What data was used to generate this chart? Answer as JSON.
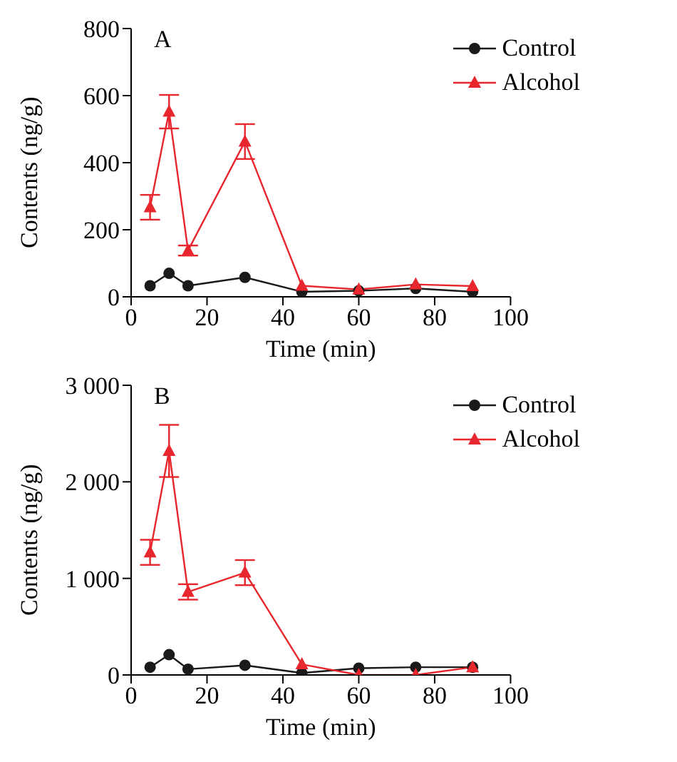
{
  "chart_data": [
    {
      "type": "line",
      "annotations": [
        "A"
      ],
      "xlabel": "Time (min)",
      "ylabel": "Contents (ng/g)",
      "x": [
        5,
        10,
        15,
        30,
        45,
        60,
        75,
        90
      ],
      "xlim": [
        0,
        100
      ],
      "xticks": [
        0,
        20,
        40,
        60,
        80,
        100
      ],
      "ylim": [
        0,
        800
      ],
      "yticks": [
        0,
        200,
        400,
        600,
        800
      ],
      "legend": "top right",
      "grid": false,
      "series": [
        {
          "name": "Control",
          "color": "#1a1a1a",
          "marker": "circle",
          "values": [
            33,
            70,
            33,
            58,
            15,
            18,
            25,
            15
          ]
        },
        {
          "name": "Alcohol",
          "color": "#e8262e",
          "marker": "triangle",
          "values": [
            267,
            552,
            138,
            463,
            33,
            22,
            37,
            32
          ],
          "errors": [
            37,
            50,
            15,
            52,
            null,
            null,
            null,
            null
          ]
        }
      ]
    },
    {
      "type": "line",
      "annotations": [
        "B"
      ],
      "xlabel": "Time (min)",
      "ylabel": "Contents (ng/g)",
      "x": [
        5,
        10,
        15,
        30,
        45,
        60,
        75,
        90
      ],
      "xlim": [
        0,
        100
      ],
      "xticks": [
        0,
        20,
        40,
        60,
        80,
        100
      ],
      "ylim": [
        0,
        3000
      ],
      "yticks": [
        0,
        {
          "value": 1000,
          "label": "1 000"
        },
        {
          "value": 2000,
          "label": "2 000"
        },
        {
          "value": 3000,
          "label": "3 000"
        }
      ],
      "legend": "top right",
      "grid": false,
      "series": [
        {
          "name": "Control",
          "color": "#1a1a1a",
          "marker": "circle",
          "values": [
            80,
            210,
            60,
            100,
            20,
            70,
            80,
            80
          ]
        },
        {
          "name": "Alcohol",
          "color": "#e8262e",
          "marker": "triangle",
          "values": [
            1270,
            2320,
            860,
            1060,
            110,
            0,
            0,
            80
          ],
          "errors": [
            130,
            270,
            80,
            130,
            null,
            null,
            null,
            null
          ]
        }
      ]
    }
  ]
}
